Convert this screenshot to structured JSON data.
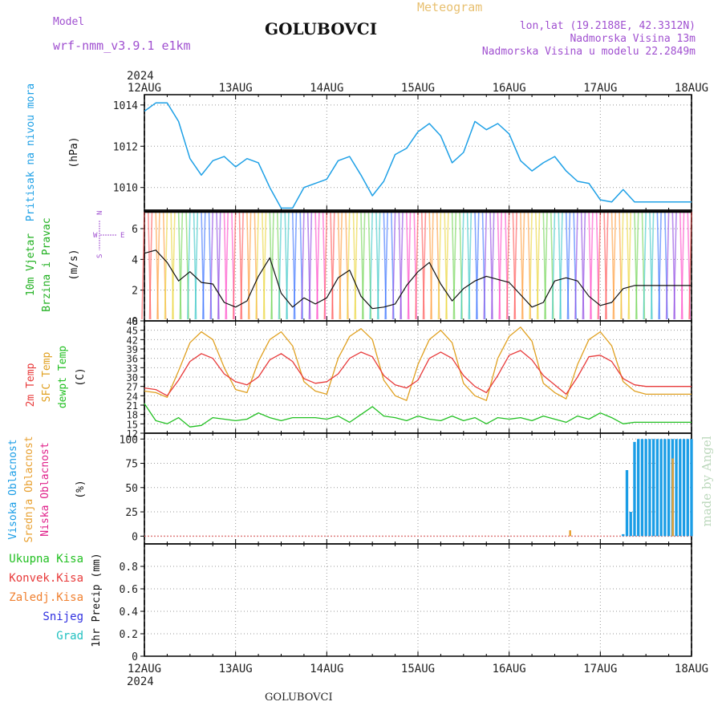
{
  "header": {
    "model_label": "Model",
    "model_name": "wrf-nmm_v3.9.1 e1km",
    "title": "GOLUBOVCI",
    "meteogram": "Meteogram",
    "lonlat": "lon,lat (19.2188E, 42.3312N)",
    "altitude": "Nadmorska Visina 13m",
    "model_altitude": "Nadmorska Visina u modelu 22.2849m",
    "watermark": "made by Angel",
    "footer": "GOLUBOVCI"
  },
  "colors": {
    "pressure": "#1ea0e6",
    "t2m": "#e83a3a",
    "sfc": "#e0a020",
    "dewpt": "#22c022",
    "high_cloud": "#1a9de6",
    "mid_cloud": "#e8a030",
    "low_cloud": "#e0208a",
    "model_label": "#a050d0",
    "meteogram": "#e8c070"
  },
  "chart_data": [
    {
      "type": "line",
      "panel": "pressure",
      "ylabel": [
        "Pritisak na nivou mora",
        "(hPa)"
      ],
      "ylim": [
        1008.9,
        1014.5
      ],
      "yticks": [
        1010,
        1012,
        1014
      ],
      "x_start": "2024-08-12T00",
      "x_hours": [
        0,
        3,
        6,
        9,
        12,
        15,
        18,
        21,
        24,
        27,
        30,
        33,
        36,
        39,
        42,
        45,
        48,
        51,
        54,
        57,
        60,
        63,
        66,
        69,
        72,
        75,
        78,
        81,
        84,
        87,
        90,
        93,
        96,
        99,
        102,
        105,
        108,
        111,
        114,
        117,
        120,
        123,
        126,
        129,
        132,
        135,
        138,
        141,
        144
      ],
      "series": [
        {
          "name": "Pritisak na nivou mora",
          "values": [
            1013.7,
            1014.1,
            1014.1,
            1013.2,
            1011.4,
            1010.6,
            1011.3,
            1011.5,
            1011.0,
            1011.4,
            1011.2,
            1010.0,
            1009.0,
            1009.0,
            1010.0,
            1010.2,
            1010.4,
            1011.3,
            1011.5,
            1010.6,
            1009.6,
            1010.3,
            1011.6,
            1011.9,
            1012.7,
            1013.1,
            1012.5,
            1011.2,
            1011.7,
            1013.2,
            1012.8,
            1013.1,
            1012.6,
            1011.3,
            1010.8,
            1011.2,
            1011.5,
            1010.8,
            1010.3,
            1010.2,
            1009.4,
            1009.3,
            1009.9,
            1009.3,
            1009.3,
            1009.3,
            1009.3,
            1009.3,
            1009.3
          ]
        }
      ]
    },
    {
      "type": "line",
      "panel": "wind",
      "ylabel": [
        "10m Vjetar",
        "Brzina i Pravac",
        "(m/s)"
      ],
      "ylim": [
        0,
        7.2
      ],
      "yticks": [
        0,
        2,
        4,
        6
      ],
      "compass": {
        "north": "N",
        "south": "S",
        "east": "E",
        "west": "W"
      },
      "x_hours": [
        0,
        3,
        6,
        9,
        12,
        15,
        18,
        21,
        24,
        27,
        30,
        33,
        36,
        39,
        42,
        45,
        48,
        51,
        54,
        57,
        60,
        63,
        66,
        69,
        72,
        75,
        78,
        81,
        84,
        87,
        90,
        93,
        96,
        99,
        102,
        105,
        108,
        111,
        114,
        117,
        120,
        123,
        126,
        129,
        132,
        135,
        138,
        141,
        144
      ],
      "series": [
        {
          "name": "10m Vjetar",
          "values": [
            4.4,
            4.6,
            3.8,
            2.6,
            3.2,
            2.5,
            2.4,
            1.2,
            0.9,
            1.3,
            2.9,
            4.1,
            1.8,
            0.9,
            1.5,
            1.1,
            1.5,
            2.8,
            3.3,
            1.6,
            0.8,
            0.9,
            1.1,
            2.3,
            3.2,
            3.8,
            2.4,
            1.3,
            2.1,
            2.6,
            2.9,
            2.7,
            2.5,
            1.7,
            0.9,
            1.2,
            2.6,
            2.8,
            2.6,
            1.6,
            1.0,
            1.2,
            2.1,
            2.3,
            2.3,
            2.3,
            2.3,
            2.3,
            2.3
          ]
        }
      ]
    },
    {
      "type": "line",
      "panel": "temperature",
      "ylabel": [
        "2m Temp",
        "SFC Temp",
        "dewpt Temp",
        "(C)"
      ],
      "ylim": [
        12,
        48
      ],
      "yticks": [
        12,
        15,
        18,
        21,
        24,
        27,
        30,
        33,
        36,
        39,
        42,
        45,
        48
      ],
      "x_hours": [
        0,
        3,
        6,
        9,
        12,
        15,
        18,
        21,
        24,
        27,
        30,
        33,
        36,
        39,
        42,
        45,
        48,
        51,
        54,
        57,
        60,
        63,
        66,
        69,
        72,
        75,
        78,
        81,
        84,
        87,
        90,
        93,
        96,
        99,
        102,
        105,
        108,
        111,
        114,
        117,
        120,
        123,
        126,
        129,
        132,
        135,
        138,
        141,
        144
      ],
      "series": [
        {
          "name": "2m Temp",
          "values": [
            26.5,
            26.0,
            24.0,
            29.0,
            35.0,
            37.5,
            36.0,
            31.0,
            28.5,
            27.5,
            30.0,
            35.5,
            37.5,
            35.0,
            29.5,
            28.0,
            28.5,
            31.0,
            36.0,
            38.0,
            36.5,
            30.5,
            27.5,
            26.5,
            29.0,
            36.0,
            38.0,
            36.0,
            30.5,
            27.0,
            25.0,
            30.5,
            37.0,
            38.5,
            35.5,
            30.5,
            27.5,
            24.5,
            30.0,
            36.5,
            37.0,
            35.0,
            29.5,
            27.5,
            27.0,
            27.0,
            27.0,
            27.0,
            27.0
          ]
        },
        {
          "name": "SFC Temp",
          "values": [
            25.5,
            25.0,
            23.5,
            32.0,
            41.0,
            44.5,
            42.0,
            33.0,
            26.0,
            25.0,
            35.0,
            42.0,
            44.5,
            40.0,
            28.5,
            25.5,
            24.5,
            36.0,
            43.0,
            45.5,
            42.0,
            29.0,
            24.0,
            22.5,
            34.0,
            42.0,
            45.0,
            41.0,
            28.0,
            24.0,
            22.5,
            36.0,
            43.0,
            46.0,
            41.5,
            28.0,
            25.0,
            23.0,
            34.0,
            42.0,
            44.5,
            40.0,
            28.5,
            25.5,
            24.5,
            24.5,
            24.5,
            24.5,
            24.5
          ]
        },
        {
          "name": "dewpt Temp",
          "values": [
            21.5,
            16.0,
            15.0,
            17.0,
            14.0,
            14.5,
            17.0,
            16.5,
            16.0,
            16.5,
            18.5,
            17.0,
            16.0,
            17.0,
            17.0,
            17.0,
            16.5,
            17.5,
            15.5,
            18.0,
            20.5,
            17.5,
            17.0,
            16.0,
            17.5,
            16.5,
            16.0,
            17.5,
            16.0,
            17.0,
            15.0,
            17.0,
            16.5,
            17.0,
            16.0,
            17.5,
            16.5,
            15.5,
            17.5,
            16.5,
            18.5,
            17.0,
            15.0,
            15.5,
            15.5,
            15.5,
            15.5,
            15.5,
            15.5
          ]
        }
      ]
    },
    {
      "type": "bar",
      "panel": "cloud",
      "ylabel": [
        "Visoka Oblacnost",
        "Srednja Oblacnost",
        "Niska Oblacnost",
        "(%)"
      ],
      "ylim": [
        -8,
        106
      ],
      "yticks": [
        0,
        25,
        50,
        75,
        100
      ],
      "series": [
        {
          "name": "Visoka Oblacnost",
          "hours": [
            126,
            127,
            128,
            129,
            130,
            131,
            132,
            133,
            134,
            135,
            136,
            137,
            138,
            139,
            140,
            141,
            142,
            143,
            144
          ],
          "values": [
            2,
            68,
            25,
            97,
            100,
            100,
            100,
            100,
            100,
            100,
            100,
            100,
            100,
            100,
            100,
            100,
            100,
            100,
            100
          ]
        },
        {
          "name": "Srednja Oblacnost",
          "hours": [
            112,
            139
          ],
          "values": [
            6,
            80
          ]
        },
        {
          "name": "Niska Oblacnost",
          "hours": [],
          "values": []
        }
      ]
    },
    {
      "type": "bar",
      "panel": "precip",
      "ylabel": [
        "1hr Precip",
        "(mm)"
      ],
      "ylim": [
        0,
        1.0
      ],
      "yticks": [
        0,
        0.2,
        0.4,
        0.6,
        0.8
      ],
      "legend": [
        "Ukupna Kisa",
        "Konvek.Kisa",
        "Zaledj.Kisa",
        "Snijeg",
        "Grad"
      ],
      "legend_colors": [
        "#22c022",
        "#e83a3a",
        "#f08030",
        "#3030e0",
        "#20c0c0"
      ],
      "values": []
    }
  ],
  "xaxis": {
    "year": "2024",
    "ticks": [
      "12AUG",
      "13AUG",
      "14AUG",
      "15AUG",
      "16AUG",
      "17AUG",
      "18AUG"
    ]
  }
}
